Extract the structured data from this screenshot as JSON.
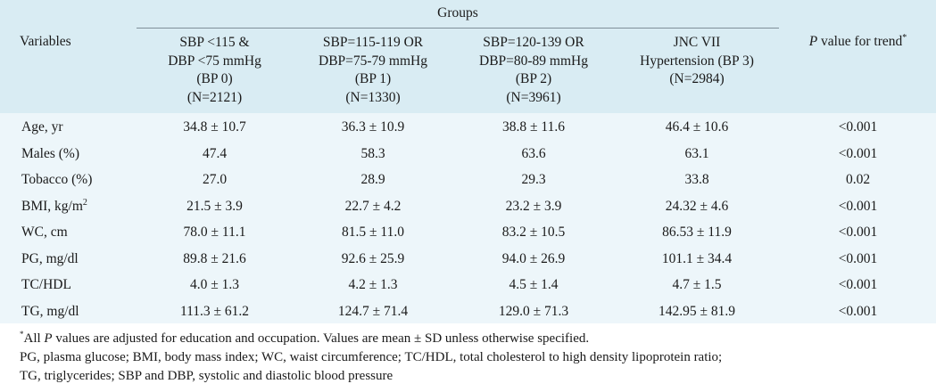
{
  "header": {
    "groups_label": "Groups",
    "variables_label": "Variables",
    "p_italic": "P",
    "p_rest": " value for trend",
    "p_sup": "*",
    "columns": [
      {
        "l1": "SBP <115 &",
        "l2": "DBP <75 mmHg",
        "l3": "(BP 0)",
        "l4": "(N=2121)"
      },
      {
        "l1": "SBP=115-119 OR",
        "l2": "DBP=75-79 mmHg",
        "l3": "(BP 1)",
        "l4": "(N=1330)"
      },
      {
        "l1": "SBP=120-139 OR",
        "l2": "DBP=80-89 mmHg",
        "l3": "(BP 2)",
        "l4": "(N=3961)"
      },
      {
        "l1": "JNC VII",
        "l2": "Hypertension (BP 3)",
        "l3": "(N=2984)",
        "l4": ""
      }
    ]
  },
  "rows": [
    {
      "var": "Age, yr",
      "sup": "",
      "bp0": "34.8 ± 10.7",
      "bp1": "36.3 ± 10.9",
      "bp2": "38.8 ± 11.6",
      "bp3": "46.4 ± 10.6",
      "p": "<0.001"
    },
    {
      "var": "Males (%)",
      "sup": "",
      "bp0": "47.4",
      "bp1": "58.3",
      "bp2": "63.6",
      "bp3": "63.1",
      "p": "<0.001"
    },
    {
      "var": "Tobacco (%)",
      "sup": "",
      "bp0": "27.0",
      "bp1": "28.9",
      "bp2": "29.3",
      "bp3": "33.8",
      "p": "0.02"
    },
    {
      "var": "BMI, kg/m",
      "sup": "2",
      "bp0": "21.5 ± 3.9",
      "bp1": "22.7 ± 4.2",
      "bp2": "23.2 ± 3.9",
      "bp3": "24.32 ± 4.6",
      "p": "<0.001"
    },
    {
      "var": "WC, cm",
      "sup": "",
      "bp0": "78.0 ± 11.1",
      "bp1": "81.5 ± 11.0",
      "bp2": "83.2 ± 10.5",
      "bp3": "86.53 ± 11.9",
      "p": "<0.001"
    },
    {
      "var": "PG, mg/dl",
      "sup": "",
      "bp0": "89.8 ± 21.6",
      "bp1": "92.6 ± 25.9",
      "bp2": "94.0 ± 26.9",
      "bp3": "101.1 ± 34.4",
      "p": "<0.001"
    },
    {
      "var": "TC/HDL",
      "sup": "",
      "bp0": "4.0 ± 1.3",
      "bp1": "4.2 ± 1.3",
      "bp2": "4.5 ± 1.4",
      "bp3": "4.7 ± 1.5",
      "p": "<0.001"
    },
    {
      "var": "TG, mg/dl",
      "sup": "",
      "bp0": "111.3 ± 61.2",
      "bp1": "124.7 ± 71.4",
      "bp2": "129.0 ± 71.3",
      "bp3": "142.95 ± 81.9",
      "p": "<0.001"
    }
  ],
  "footnotes": {
    "line1_sup": "*",
    "line1_pre": "All ",
    "line1_italic": "P",
    "line1_post": " values are adjusted for education and occupation. Values are mean ± SD unless otherwise specified.",
    "line2": "PG, plasma glucose; BMI, body mass index; WC, waist circumference; TC/HDL, total cholesterol to high density lipoprotein ratio;",
    "line3": "TG, triglycerides; SBP and DBP, systolic and diastolic blood pressure"
  }
}
